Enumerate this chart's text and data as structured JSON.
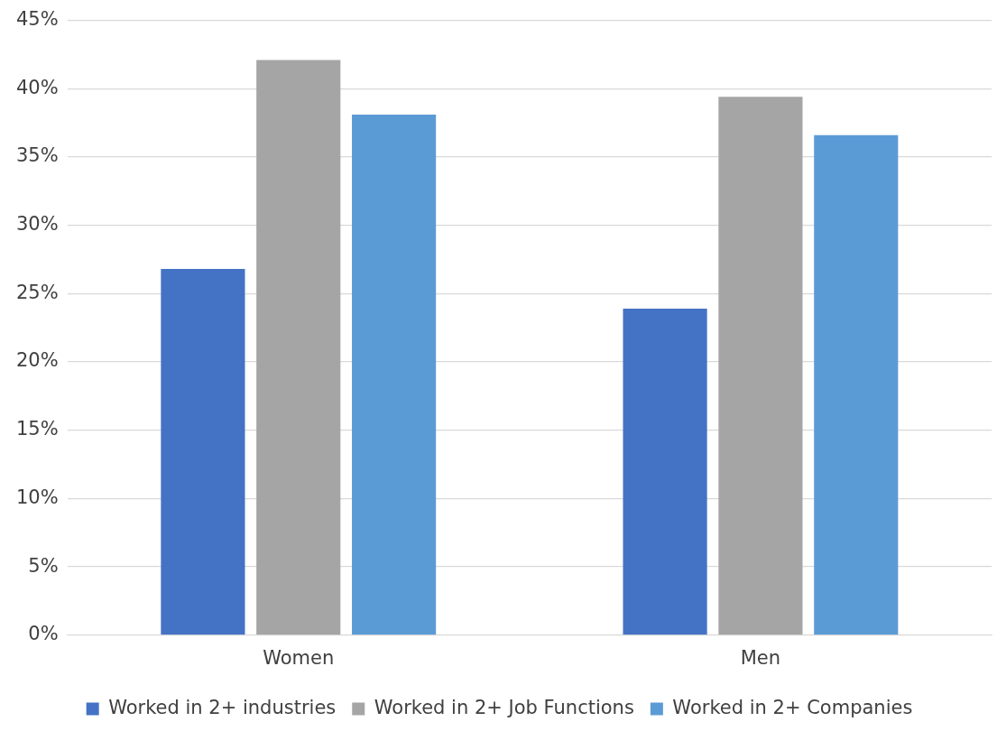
{
  "chart_data": {
    "type": "bar",
    "categories": [
      "Women",
      "Men"
    ],
    "series": [
      {
        "name": "Worked in 2+ industries",
        "color": "#4472c4",
        "values": [
          26.8,
          23.9
        ]
      },
      {
        "name": "Worked in 2+ Job Functions",
        "color": "#a5a5a5",
        "values": [
          42.1,
          39.4
        ]
      },
      {
        "name": "Worked in 2+ Companies",
        "color": "#5b9bd5",
        "values": [
          38.1,
          36.6
        ]
      }
    ],
    "ylim": [
      0,
      45
    ],
    "yticks": [
      {
        "value": 0,
        "label": "0%"
      },
      {
        "value": 5,
        "label": "5%"
      },
      {
        "value": 10,
        "label": "10%"
      },
      {
        "value": 15,
        "label": "15%"
      },
      {
        "value": 20,
        "label": "20%"
      },
      {
        "value": 25,
        "label": "25%"
      },
      {
        "value": 30,
        "label": "30%"
      },
      {
        "value": 35,
        "label": "35%"
      },
      {
        "value": 40,
        "label": "40%"
      },
      {
        "value": 45,
        "label": "45%"
      }
    ],
    "grid": "y",
    "legend": "bottom"
  }
}
